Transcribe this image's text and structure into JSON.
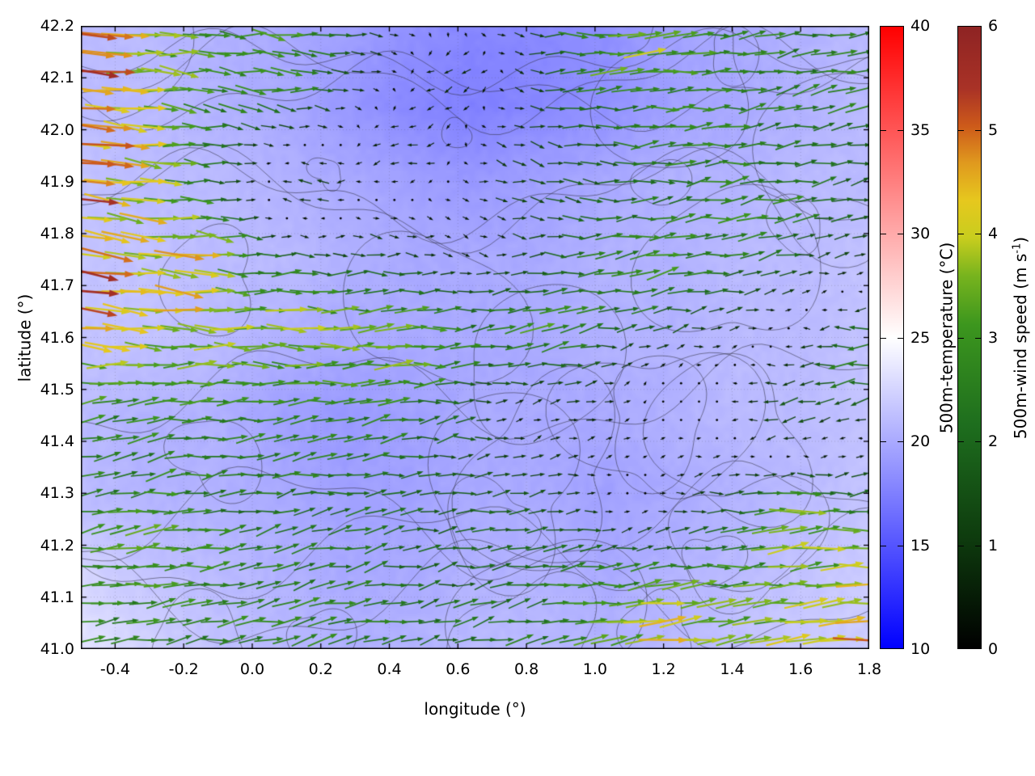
{
  "figure": {
    "x_axis": {
      "label": "longitude (°)",
      "min": -0.5,
      "max": 1.8,
      "ticks": [
        "-0.4",
        "-0.2",
        "0.0",
        "0.2",
        "0.4",
        "0.6",
        "0.8",
        "1.0",
        "1.2",
        "1.4",
        "1.6",
        "1.8"
      ]
    },
    "y_axis": {
      "label": "latitude (°)",
      "min": 41.0,
      "max": 42.2,
      "ticks": [
        "41.0",
        "41.1",
        "41.2",
        "41.3",
        "41.4",
        "41.5",
        "41.6",
        "41.7",
        "41.8",
        "41.9",
        "42.0",
        "42.1",
        "42.2"
      ]
    },
    "colorbars": [
      {
        "label": "500m-temperature (°C)",
        "min": 10,
        "max": 40,
        "ticks": [
          "10",
          "15",
          "20",
          "25",
          "30",
          "35",
          "40"
        ],
        "stops": [
          [
            0,
            "#0000ff"
          ],
          [
            0.5,
            "#ffffff"
          ],
          [
            1,
            "#ff0000"
          ]
        ]
      },
      {
        "label_prefix": "500m-wind speed (m s",
        "label_sup": "-1",
        "label_suffix": ")",
        "min": 0,
        "max": 6,
        "ticks": [
          "0",
          "1",
          "2",
          "3",
          "4",
          "5",
          "6"
        ],
        "stops": [
          [
            0,
            "#000000"
          ],
          [
            0.18,
            "#0e3c0e"
          ],
          [
            0.36,
            "#1e6e1e"
          ],
          [
            0.52,
            "#3c961e"
          ],
          [
            0.6,
            "#78b41e"
          ],
          [
            0.66,
            "#c8cd1e"
          ],
          [
            0.72,
            "#e6c81e"
          ],
          [
            0.78,
            "#e09a1e"
          ],
          [
            0.84,
            "#cd5a1a"
          ],
          [
            0.9,
            "#a93226"
          ],
          [
            1,
            "#8e2323"
          ]
        ]
      }
    ]
  },
  "chart_data": [
    {
      "type": "heatmap",
      "title": "500m-temperature field (°C), shaded background",
      "x_range": [
        -0.5,
        1.8
      ],
      "y_range": [
        41.0,
        42.2
      ],
      "value_range": [
        10,
        40
      ],
      "grid_lats": [
        42.2,
        42.05,
        41.9,
        41.75,
        41.6,
        41.45,
        41.3,
        41.15,
        41.0
      ],
      "values": [
        [
          21.0,
          21.0,
          20.5,
          20.0,
          19.5,
          18.5,
          18.0,
          18.0,
          18.5,
          19.5,
          20.0,
          20.5,
          21.0
        ],
        [
          21.0,
          21.0,
          20.5,
          20.0,
          19.0,
          18.0,
          17.5,
          18.0,
          18.5,
          19.5,
          20.0,
          20.5,
          21.0
        ],
        [
          21.5,
          21.0,
          21.0,
          20.5,
          20.0,
          19.5,
          19.0,
          19.5,
          20.0,
          20.5,
          20.5,
          21.0,
          21.0
        ],
        [
          21.5,
          21.5,
          21.0,
          21.0,
          20.5,
          20.0,
          20.0,
          20.0,
          20.5,
          20.5,
          21.0,
          21.0,
          21.5
        ],
        [
          21.5,
          21.5,
          21.0,
          20.5,
          20.0,
          20.0,
          20.0,
          20.0,
          20.5,
          20.5,
          21.0,
          21.0,
          21.5
        ],
        [
          21.0,
          20.5,
          20.5,
          19.5,
          19.0,
          19.5,
          20.0,
          20.0,
          20.0,
          20.5,
          21.0,
          21.0,
          21.5
        ],
        [
          21.0,
          20.5,
          20.5,
          20.0,
          19.5,
          19.5,
          20.0,
          20.0,
          19.5,
          20.0,
          20.5,
          21.0,
          21.5
        ],
        [
          22.5,
          21.5,
          21.0,
          20.5,
          20.0,
          20.0,
          20.5,
          20.5,
          20.0,
          20.5,
          21.0,
          21.5,
          22.0
        ],
        [
          23.5,
          22.5,
          21.5,
          21.0,
          20.5,
          20.5,
          21.0,
          21.0,
          20.5,
          21.0,
          21.5,
          22.0,
          22.0
        ]
      ],
      "annotations": [
        "thin dark-gray terrain/boundary contour lines overlaid on the field"
      ]
    },
    {
      "type": "scatter",
      "subtype": "quiver",
      "title": "500m-wind vectors, colored and scaled by speed (m/s)",
      "speed_range": [
        0,
        6
      ],
      "control_vectors": [
        {
          "lon": -0.5,
          "lat": 42.15,
          "u": 5.6,
          "v": -0.2
        },
        {
          "lon": 0.1,
          "lat": 42.12,
          "u": 4.0,
          "v": -0.4
        },
        {
          "lon": 0.6,
          "lat": 42.1,
          "u": -2.2,
          "v": -0.5
        },
        {
          "lon": 1.1,
          "lat": 42.15,
          "u": 4.6,
          "v": 0.3
        },
        {
          "lon": 1.7,
          "lat": 42.1,
          "u": 2.6,
          "v": 0.6
        },
        {
          "lon": -0.5,
          "lat": 41.92,
          "u": 5.8,
          "v": -0.8
        },
        {
          "lon": 0.15,
          "lat": 41.88,
          "u": -4.0,
          "v": 0.3
        },
        {
          "lon": 0.45,
          "lat": 41.95,
          "u": -2.5,
          "v": -0.3
        },
        {
          "lon": 0.9,
          "lat": 41.92,
          "u": 1.5,
          "v": -0.8
        },
        {
          "lon": 1.3,
          "lat": 42.0,
          "u": 2.8,
          "v": 0.4
        },
        {
          "lon": -0.5,
          "lat": 41.7,
          "u": 5.8,
          "v": -1.0
        },
        {
          "lon": -0.2,
          "lat": 41.72,
          "u": 5.5,
          "v": -0.7
        },
        {
          "lon": 0.15,
          "lat": 41.62,
          "u": 5.0,
          "v": -0.4
        },
        {
          "lon": 0.45,
          "lat": 41.58,
          "u": 5.5,
          "v": 0.2
        },
        {
          "lon": 0.85,
          "lat": 41.62,
          "u": 4.6,
          "v": 0.7
        },
        {
          "lon": 1.15,
          "lat": 41.72,
          "u": 4.2,
          "v": 0.9
        },
        {
          "lon": 1.45,
          "lat": 41.82,
          "u": 3.6,
          "v": 0.7
        },
        {
          "lon": 1.78,
          "lat": 41.55,
          "u": -5.0,
          "v": -0.6
        },
        {
          "lon": 1.55,
          "lat": 41.45,
          "u": -3.4,
          "v": -0.5
        },
        {
          "lon": 0.3,
          "lat": 41.45,
          "u": 2.2,
          "v": 0.5
        },
        {
          "lon": 0.8,
          "lat": 41.45,
          "u": -1.2,
          "v": 0.2
        },
        {
          "lon": 0.6,
          "lat": 41.3,
          "u": 1.6,
          "v": 0.3
        },
        {
          "lon": 1.1,
          "lat": 41.3,
          "u": -1.8,
          "v": -0.2
        },
        {
          "lon": -0.4,
          "lat": 41.35,
          "u": 2.0,
          "v": 1.0
        },
        {
          "lon": 0.05,
          "lat": 41.25,
          "u": 1.8,
          "v": 0.6
        },
        {
          "lon": -0.3,
          "lat": 41.2,
          "u": 3.6,
          "v": 0.3
        },
        {
          "lon": 1.6,
          "lat": 41.25,
          "u": 5.2,
          "v": 0.5
        },
        {
          "lon": 1.2,
          "lat": 41.05,
          "u": 5.5,
          "v": 0.6
        },
        {
          "lon": 0.7,
          "lat": 41.05,
          "u": 2.2,
          "v": 0.6
        },
        {
          "lon": 0.2,
          "lat": 41.05,
          "u": 3.0,
          "v": 0.9
        },
        {
          "lon": -0.35,
          "lat": 41.05,
          "u": 2.6,
          "v": 0.5
        },
        {
          "lon": 1.75,
          "lat": 41.05,
          "u": 5.6,
          "v": 0.4
        },
        {
          "lon": 0.65,
          "lat": 41.78,
          "u": -1.0,
          "v": -0.4
        },
        {
          "lon": 1.2,
          "lat": 41.5,
          "u": -1.5,
          "v": 0.1
        },
        {
          "lon": 0.55,
          "lat": 41.15,
          "u": 1.4,
          "v": 0.3
        },
        {
          "lon": 0.95,
          "lat": 41.15,
          "u": 3.2,
          "v": 0.4
        }
      ]
    }
  ]
}
